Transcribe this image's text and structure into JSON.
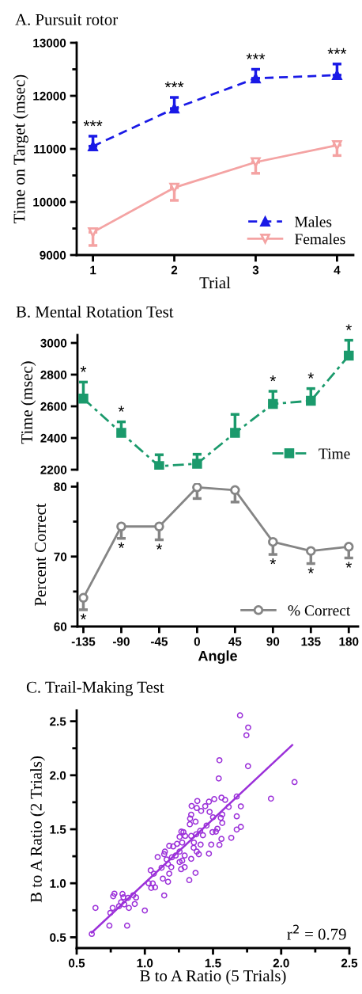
{
  "chart_data": [
    {
      "type": "line",
      "title": "A. Pursuit rotor",
      "xlabel": "Trial",
      "ylabel": "Time on Target (msec)",
      "x": [
        1,
        2,
        3,
        4
      ],
      "xlim": [
        0.8,
        4.2
      ],
      "xticks": [
        1,
        2,
        3,
        4
      ],
      "ylim": [
        9000,
        13000
      ],
      "yticks": [
        9000,
        {
          "value": 9500,
          "label": null
        },
        10000,
        {
          "value": 10500,
          "label": null
        },
        11000,
        {
          "value": 11500,
          "label": null
        },
        12000,
        {
          "value": 12500,
          "label": null
        },
        13000
      ],
      "legend": "lower right",
      "grid": false,
      "series": [
        {
          "name": "Males",
          "color": "#1a1ae6",
          "marker": "triangle",
          "line_style": "dashed",
          "values": [
            11050,
            11760,
            12330,
            12390
          ],
          "errors": [
            [
              11050,
              11240
            ],
            [
              11760,
              11970
            ],
            [
              12330,
              12500
            ],
            [
              12390,
              12600
            ]
          ]
        },
        {
          "name": "Females",
          "color": "#f4a3a3",
          "marker": "triangle_down",
          "line_style": "solid",
          "values": [
            9430,
            10270,
            10750,
            11070
          ],
          "errors": [
            [
              9180,
              9430
            ],
            [
              10030,
              10270
            ],
            [
              10540,
              10750
            ],
            [
              10875,
              11070
            ]
          ]
        }
      ],
      "annotations": [
        {
          "text": "***",
          "x": 1,
          "y": 11240
        },
        {
          "text": "***",
          "x": 2,
          "y": 11970
        },
        {
          "text": "***",
          "x": 3,
          "y": 12500
        },
        {
          "text": "***",
          "x": 4,
          "y": 12600
        }
      ]
    },
    {
      "type": "line",
      "title": "B. Mental Rotation Test",
      "ylabel": "Time (msec)",
      "x": [
        -135,
        -90,
        -45,
        0,
        45,
        90,
        135,
        180
      ],
      "xticks": [
        -135,
        -90,
        -45,
        0,
        45,
        90,
        135,
        180
      ],
      "tick_labels": "y",
      "ylim": [
        2200,
        3050
      ],
      "yticks": [
        2200,
        2400,
        2600,
        2800,
        3000
      ],
      "legend": "lower right",
      "grid": false,
      "series": [
        {
          "name": "Time",
          "color": "#1b9a6c",
          "marker": "square",
          "line_style": "dashdot",
          "values": [
            2649,
            2432,
            2222,
            2238,
            2432,
            2615,
            2635,
            2920
          ],
          "errors": [
            [
              2649,
              2753
            ],
            [
              2432,
              2502
            ],
            [
              2222,
              2294
            ],
            [
              2238,
              2297
            ],
            [
              2432,
              2549
            ],
            [
              2615,
              2695
            ],
            [
              2635,
              2712
            ],
            [
              2920,
              3017
            ]
          ]
        }
      ],
      "annotations": [
        {
          "text": "*",
          "x": -135,
          "y": 2753
        },
        {
          "text": "*",
          "x": -90,
          "y": 2502
        },
        {
          "text": "*",
          "x": 90,
          "y": 2695
        },
        {
          "text": "*",
          "x": 135,
          "y": 2712
        },
        {
          "text": "*",
          "x": 180,
          "y": 3017
        }
      ]
    },
    {
      "type": "line",
      "xlabel": "Angle",
      "ylabel": "Percent Correct",
      "x": [
        -135,
        -90,
        -45,
        0,
        45,
        90,
        135,
        180
      ],
      "xlim": [
        -142,
        191
      ],
      "xticks": [
        -135,
        -90,
        -45,
        0,
        45,
        90,
        135,
        180
      ],
      "ylim": [
        60,
        80.5
      ],
      "yticks": [
        60,
        {
          "value": 65,
          "label": null
        },
        70,
        {
          "value": 75,
          "label": null
        },
        80
      ],
      "legend": "lower right",
      "grid": false,
      "series": [
        {
          "name": "% Correct",
          "color": "#858585",
          "marker": "circle",
          "line_style": "solid",
          "values": [
            64.1,
            74.3,
            74.3,
            79.9,
            79.5,
            72.1,
            70.8,
            71.4
          ],
          "errors": [
            [
              62.4,
              64.1
            ],
            [
              72.6,
              74.3
            ],
            [
              72.4,
              74.3
            ],
            [
              78.3,
              79.9
            ],
            [
              77.8,
              79.5
            ],
            [
              70.3,
              72.1
            ],
            [
              69.0,
              70.8
            ],
            [
              69.8,
              71.4
            ]
          ]
        }
      ],
      "annotations": [
        {
          "text": "*",
          "x": -135,
          "y": 62.4
        },
        {
          "text": "*",
          "x": -90,
          "y": 72.6
        },
        {
          "text": "*",
          "x": -45,
          "y": 72.4
        },
        {
          "text": "*",
          "x": 90,
          "y": 70.3
        },
        {
          "text": "*",
          "x": 135,
          "y": 69.0
        },
        {
          "text": "*",
          "x": 180,
          "y": 69.8
        }
      ]
    },
    {
      "type": "scatter",
      "title": "C. Trail-Making Test",
      "xlabel": "B to A Ratio (5 Trials)",
      "ylabel": "B to A Ratio (2 Trials)",
      "xlim": [
        0.5,
        2.5
      ],
      "xticks": [
        0.5,
        {
          "value": 0.75,
          "label": null
        },
        {
          "value": 1,
          "label": "1.0"
        },
        {
          "value": 1.25,
          "label": null
        },
        1.5,
        {
          "value": 1.75,
          "label": null
        },
        {
          "value": 2,
          "label": "2.0"
        },
        {
          "value": 2.25,
          "label": null
        },
        2.5
      ],
      "ylim": [
        0.4,
        2.6
      ],
      "yticks": [
        0.5,
        {
          "value": 0.75,
          "label": null
        },
        {
          "value": 1,
          "label": "1.0"
        },
        {
          "value": 1.25,
          "label": null
        },
        1.5,
        {
          "value": 1.75,
          "label": null
        },
        {
          "value": 2,
          "label": "2.0"
        },
        {
          "value": 2.25,
          "label": null
        },
        2.5
      ],
      "grid": false,
      "legend": false,
      "series": [
        {
          "color": "#9b30d9",
          "marker": "circle",
          "x": [
            1.698,
            1.758,
            1.745,
            1.757,
            1.547,
            1.542,
            2.098,
            1.925,
            1.674,
            1.704,
            1.674,
            1.704,
            1.674,
            1.634,
            1.562,
            1.509,
            1.47,
            1.385,
            1.343,
            1.381,
            1.413,
            1.443,
            1.475,
            1.5,
            1.557,
            1.568,
            1.589,
            1.615,
            1.532,
            1.496,
            1.521,
            1.568,
            1.562,
            1.547,
            1.487,
            1.47,
            1.372,
            1.332,
            1.34,
            1.33,
            1.377,
            1.426,
            1.453,
            1.409,
            1.396,
            1.381,
            1.34,
            1.326,
            1.372,
            1.268,
            1.283,
            1.255,
            1.274,
            1.296,
            1.236,
            1.208,
            1.179,
            1.255,
            1.292,
            1.274,
            1.255,
            1.292,
            1.266,
            1.226,
            1.198,
            1.16,
            1.147,
            1.142,
            1.17,
            1.194,
            1.179,
            1.17,
            1.123,
            1.132,
            1.094,
            1.142,
            1.043,
            1.066,
            1.028,
            1.058,
            1.047,
            1.075,
            1.0,
            0.926,
            0.936,
            0.915,
            0.877,
            0.836,
            0.843,
            0.777,
            0.768,
            0.826,
            0.849,
            0.883,
            0.811,
            0.764,
            0.747,
            0.638,
            0.74,
            0.87,
            0.611,
            1.34,
            1.36,
            1.406,
            1.358
          ],
          "values": [
            2.555,
            2.442,
            2.37,
            2.084,
            2.139,
            1.971,
            1.937,
            1.784,
            1.803,
            1.712,
            1.62,
            1.522,
            1.498,
            1.421,
            1.793,
            1.779,
            1.755,
            1.762,
            1.716,
            1.697,
            1.67,
            1.714,
            1.661,
            1.611,
            1.606,
            1.637,
            1.772,
            1.707,
            1.505,
            1.474,
            1.478,
            1.558,
            1.411,
            1.356,
            1.358,
            1.274,
            1.57,
            1.599,
            1.635,
            1.546,
            1.454,
            1.445,
            1.534,
            1.358,
            1.269,
            1.293,
            1.226,
            1.029,
            1.096,
            1.478,
            1.474,
            1.43,
            1.377,
            1.438,
            1.365,
            1.341,
            1.346,
            1.293,
            1.257,
            1.209,
            1.197,
            1.149,
            1.13,
            1.257,
            1.24,
            1.221,
            1.293,
            1.269,
            1.178,
            1.149,
            1.089,
            1.014,
            1.144,
            1.043,
            1.243,
            0.887,
            1.12,
            1.089,
            1.0,
            0.998,
            0.957,
            0.962,
            0.748,
            0.808,
            0.868,
            0.889,
            0.865,
            0.901,
            0.87,
            0.904,
            0.88,
            0.825,
            0.805,
            0.772,
            0.788,
            0.772,
            0.726,
            0.772,
            0.608,
            0.608,
            0.531,
            1.438,
            1.377,
            1.486,
            1.329
          ]
        },
        {
          "type": "line",
          "color": "#9b30d9",
          "marker": "none",
          "line_style": "solid",
          "x": [
            0.611,
            2.081
          ],
          "values": [
            0.543,
            2.279
          ]
        }
      ],
      "annotations": [
        "r$^{2}$ = 0.79"
      ]
    }
  ]
}
